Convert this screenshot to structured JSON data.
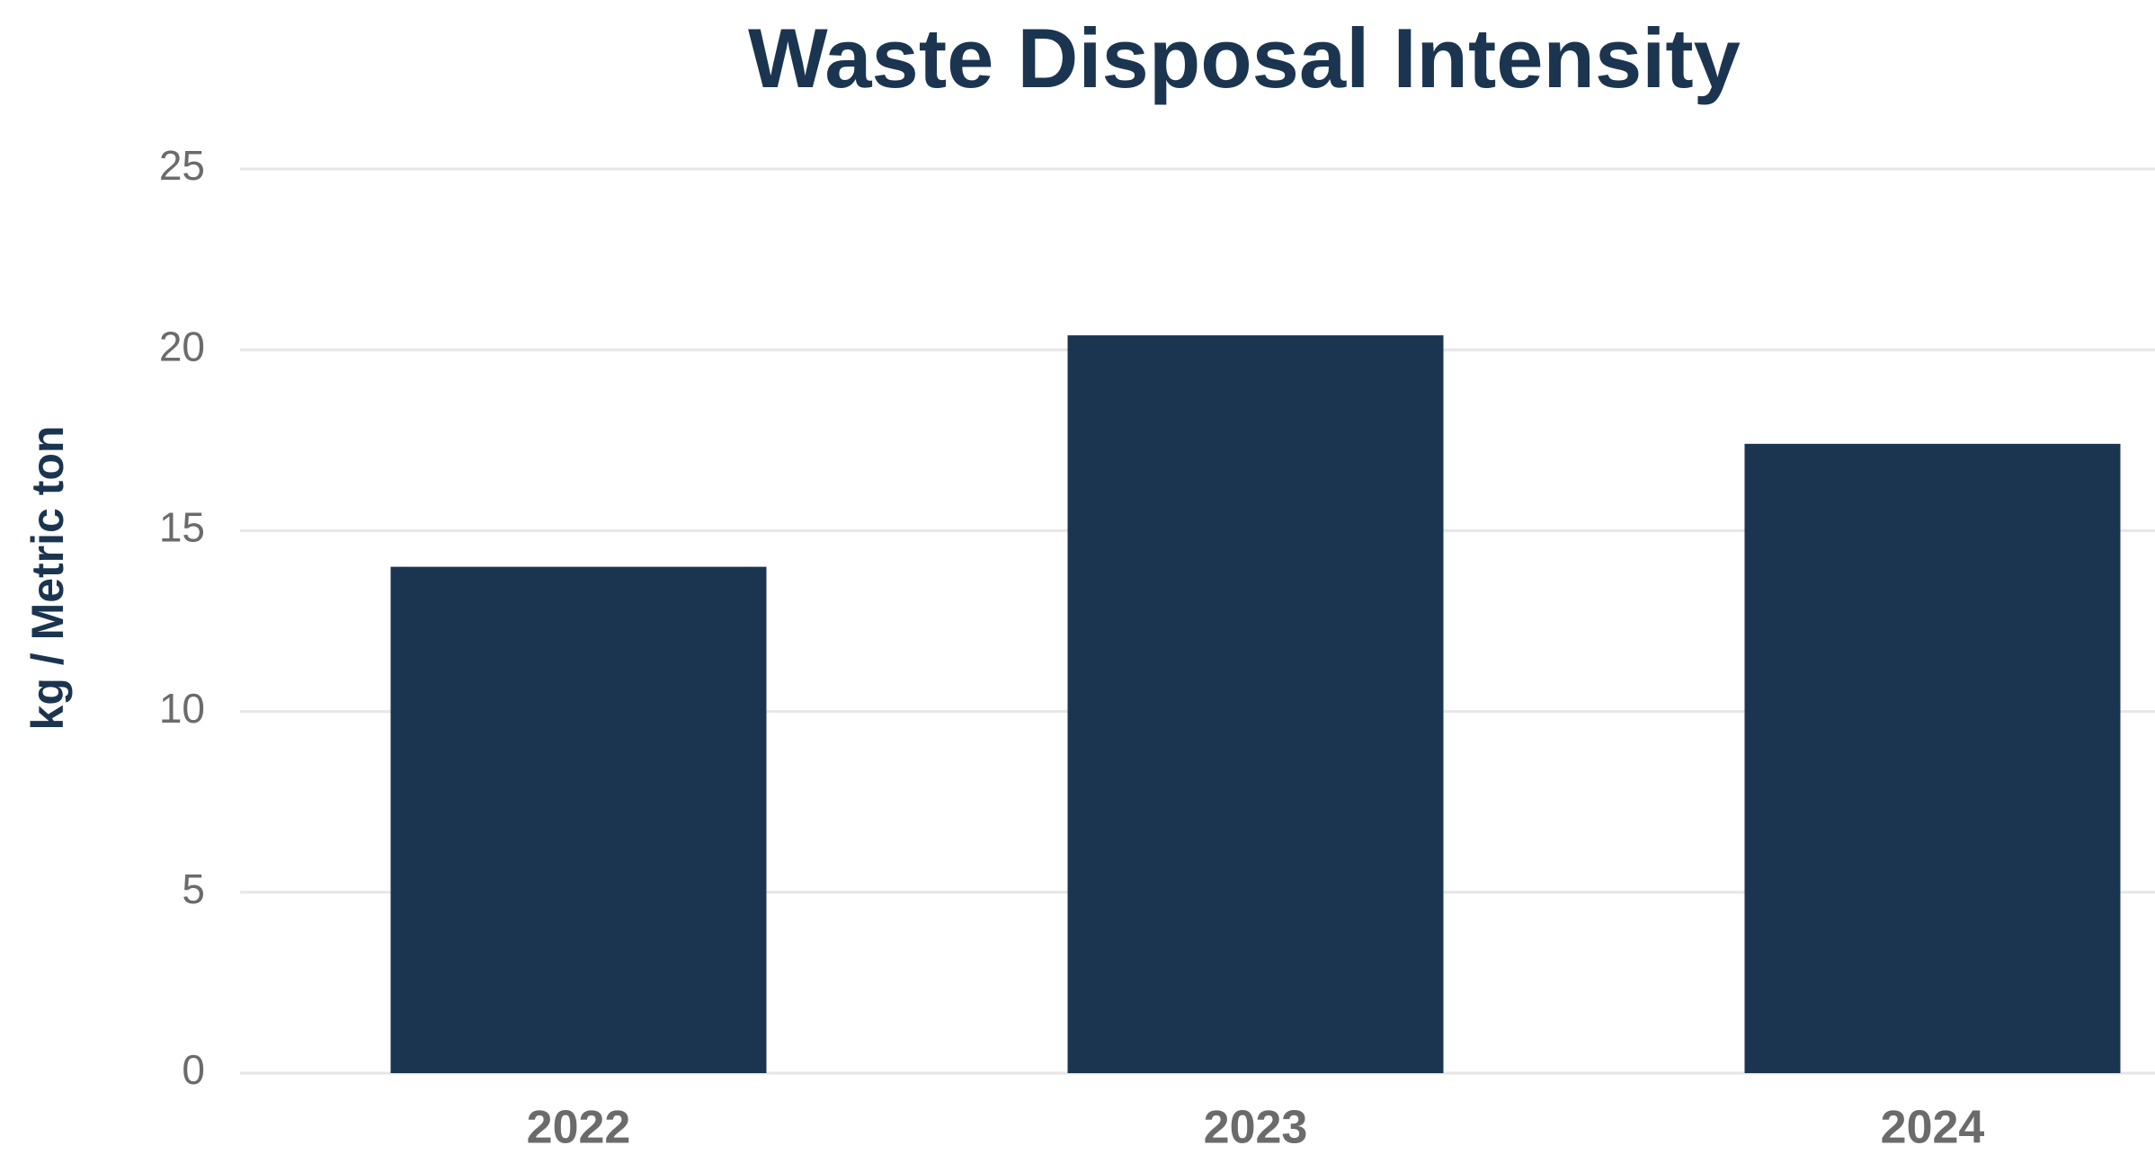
{
  "chart_data": {
    "type": "bar",
    "title": "Waste Disposal Intensity",
    "y_label": "kg / Metric ton",
    "categories": [
      "2022",
      "2023",
      "2024"
    ],
    "values": [
      14,
      20.4,
      17.4
    ],
    "color": "#1b3550",
    "ylim": [
      0,
      25
    ],
    "yticks": [
      0,
      5,
      10,
      15,
      20,
      25
    ],
    "grid": true
  }
}
